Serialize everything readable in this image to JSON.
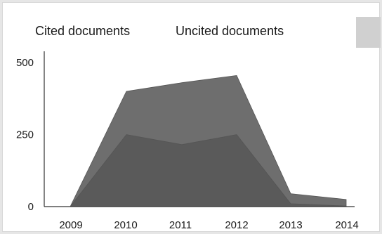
{
  "chart_data": {
    "type": "area",
    "title": "",
    "xlabel": "",
    "ylabel": "",
    "x": [
      "2009",
      "2010",
      "2011",
      "2012",
      "2013",
      "2014"
    ],
    "ylim": [
      0,
      500
    ],
    "yticks": [
      0,
      250,
      500
    ],
    "series": [
      {
        "name": "Cited documents",
        "values": [
          0,
          250,
          215,
          250,
          10,
          2
        ],
        "color": "#5a5a5a"
      },
      {
        "name": "Uncited documents",
        "values": [
          0,
          150,
          215,
          205,
          35,
          23
        ],
        "color": "#6e6e6e"
      }
    ],
    "stacked": true,
    "grid": false,
    "legend": "top-left"
  }
}
